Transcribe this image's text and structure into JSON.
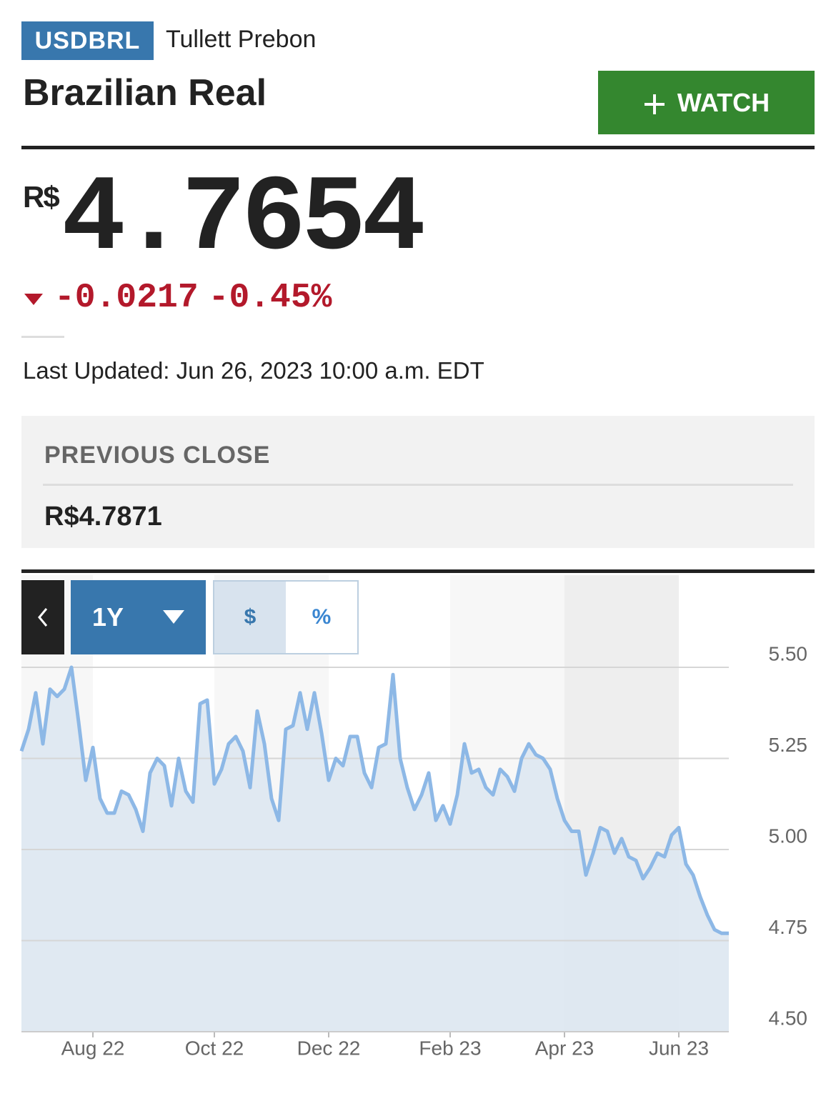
{
  "header": {
    "ticker": "USDBRL",
    "source": "Tullett Prebon",
    "title": "Brazilian Real",
    "watch_button": "WATCH"
  },
  "quote": {
    "currency": "R$",
    "price": "4.7654",
    "change": "-0.0217",
    "change_percent": "-0.45%",
    "last_updated": "Last Updated: Jun 26, 2023 10:00 a.m. EDT"
  },
  "previous_close": {
    "label": "PREVIOUS CLOSE",
    "value": "R$4.7871"
  },
  "controls": {
    "range": "1Y",
    "dollar": "$",
    "percent": "%"
  },
  "chart_data": {
    "type": "line",
    "area": true,
    "color": "#8db8e6",
    "area_color": "#dde7f1",
    "categories": [
      null,
      null,
      null,
      null,
      null,
      null,
      null,
      null,
      null,
      null,
      "Aug 22",
      null,
      null,
      null,
      null,
      null,
      null,
      null,
      null,
      null,
      null,
      null,
      null,
      null,
      null,
      null,
      null,
      "Oct 22",
      null,
      null,
      null,
      null,
      null,
      null,
      null,
      null,
      null,
      null,
      null,
      null,
      null,
      null,
      null,
      "Dec 22",
      null,
      null,
      null,
      null,
      null,
      null,
      null,
      null,
      null,
      null,
      null,
      null,
      null,
      null,
      null,
      null,
      "Feb 23",
      null,
      null,
      null,
      null,
      null,
      null,
      null,
      null,
      null,
      null,
      null,
      null,
      null,
      null,
      null,
      "Apr 23",
      null,
      null,
      null,
      null,
      null,
      null,
      null,
      null,
      null,
      null,
      null,
      null,
      null,
      null,
      null,
      "Jun 23",
      null,
      null,
      null,
      null,
      null,
      null,
      null
    ],
    "values": [
      5.27,
      5.33,
      5.43,
      5.29,
      5.44,
      5.42,
      5.44,
      5.5,
      5.35,
      5.19,
      5.28,
      5.14,
      5.1,
      5.1,
      5.16,
      5.15,
      5.11,
      5.05,
      5.21,
      5.25,
      5.23,
      5.12,
      5.25,
      5.16,
      5.13,
      5.4,
      5.41,
      5.18,
      5.22,
      5.29,
      5.31,
      5.27,
      5.17,
      5.38,
      5.29,
      5.14,
      5.08,
      5.33,
      5.34,
      5.43,
      5.33,
      5.43,
      5.32,
      5.19,
      5.25,
      5.23,
      5.31,
      5.31,
      5.21,
      5.17,
      5.28,
      5.29,
      5.48,
      5.25,
      5.17,
      5.11,
      5.15,
      5.21,
      5.08,
      5.12,
      5.07,
      5.15,
      5.29,
      5.21,
      5.22,
      5.17,
      5.15,
      5.22,
      5.2,
      5.16,
      5.25,
      5.29,
      5.26,
      5.25,
      5.22,
      5.14,
      5.08,
      5.05,
      5.05,
      4.93,
      4.99,
      5.06,
      5.05,
      4.99,
      5.03,
      4.98,
      4.97,
      4.92,
      4.95,
      4.99,
      4.98,
      5.04,
      5.06,
      4.96,
      4.93,
      4.87,
      4.82,
      4.78,
      4.77,
      4.77
    ],
    "ylim": [
      4.5,
      5.5
    ],
    "yticks": [
      {
        "value": 4.5,
        "label": "4.50"
      },
      {
        "value": 4.75,
        "label": "4.75"
      },
      {
        "value": 5.0,
        "label": "5.00"
      },
      {
        "value": 5.25,
        "label": "5.25"
      },
      {
        "value": 5.5,
        "label": "5.50"
      }
    ],
    "grid": true
  }
}
